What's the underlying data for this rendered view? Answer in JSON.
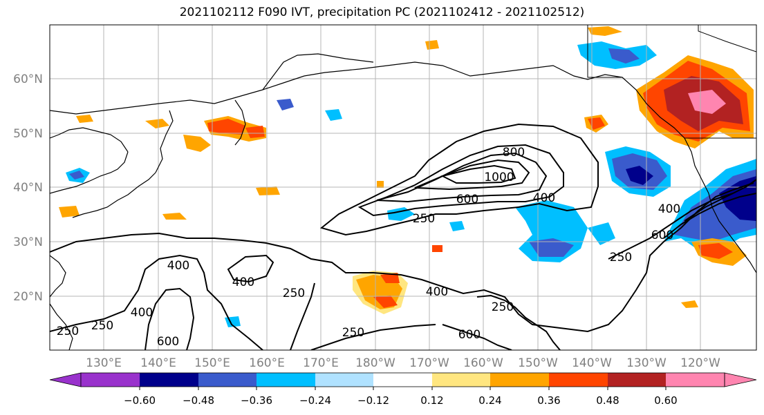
{
  "title": "2021102112 F090 IVT, precipitation PC (2021102412 - 2021102512)",
  "map": {
    "lat_ticks": [
      "20°N",
      "30°N",
      "40°N",
      "50°N",
      "60°N"
    ],
    "lon_ticks": [
      "130°E",
      "140°E",
      "150°E",
      "160°E",
      "170°E",
      "180°W",
      "170°W",
      "160°W",
      "150°W",
      "140°W",
      "130°W",
      "120°W"
    ]
  },
  "contours": {
    "labels": [
      "800",
      "1000",
      "600",
      "400",
      "250",
      "250",
      "400",
      "600",
      "400",
      "400",
      "400",
      "250",
      "250",
      "400",
      "600",
      "250",
      "250",
      "600",
      "250"
    ]
  },
  "colorbar": {
    "ticks": [
      "−0.60",
      "−0.48",
      "−0.36",
      "−0.24",
      "−0.12",
      "0.12",
      "0.24",
      "0.36",
      "0.48",
      "0.60"
    ],
    "colors": [
      "#9932cc",
      "#00008b",
      "#3a5bcc",
      "#00bfff",
      "#b0e2ff",
      "#ffffff",
      "#ffe680",
      "#ffa500",
      "#ff4500",
      "#b22222",
      "#ff85b0"
    ]
  }
}
